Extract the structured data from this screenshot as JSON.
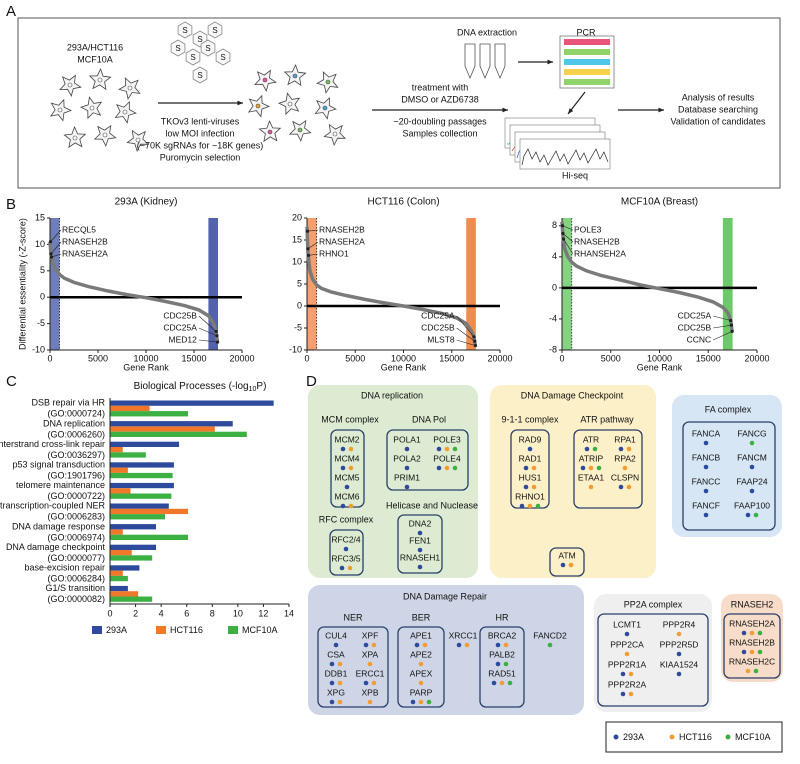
{
  "panel_labels": [
    "A",
    "B",
    "C",
    "D"
  ],
  "workflow": {
    "cell_lines": [
      "293A/HCT116",
      "MCF10A"
    ],
    "virus_label": "S",
    "infection": [
      "TKOv3 lenti-viruses",
      "low MOI infection",
      "(~70K sgRNAs for ~18K genes)",
      "Puromycin selection"
    ],
    "treatment": [
      "treatment with",
      "DMSO or AZD6738",
      "~20-doubling passages",
      "Samples collection"
    ],
    "extraction": "DNA extraction",
    "pcr": "PCR",
    "sequencing": "Hi-seq",
    "analysis": [
      "Analysis of results",
      "Database searching",
      "Validation of candidates"
    ]
  },
  "chart_data": [
    {
      "type": "line",
      "title": "293A (Kidney)",
      "ylabel": "Differential essentiality (-Z-score)",
      "xlabel": "Gene Rank",
      "color": "#3f51a3",
      "x": [
        0,
        100,
        300,
        600,
        1000,
        1500,
        2500,
        4000,
        6000,
        8000,
        10000,
        12000,
        14000,
        15500,
        16500,
        17000,
        17300,
        17450
      ],
      "values": [
        10.5,
        8,
        6.5,
        5.2,
        4.3,
        3.6,
        2.8,
        2,
        1.2,
        0.5,
        -0.1,
        -0.8,
        -1.6,
        -2.4,
        -3.5,
        -4.8,
        -6.5,
        -8.5
      ],
      "xlim": [
        0,
        20000
      ],
      "xticks": [
        0,
        5000,
        10000,
        15000,
        20000
      ],
      "ylim": [
        -10,
        15
      ],
      "yticks": [
        -10,
        -5,
        0,
        5,
        10,
        15
      ],
      "highlight": [
        [
          0,
          1000
        ],
        [
          16500,
          17500
        ]
      ],
      "annotations": [
        {
          "text": "RECQL5",
          "x": 50,
          "y": 10.5
        },
        {
          "text": "RNASEH2B",
          "x": 100,
          "y": 8.2
        },
        {
          "text": "RNASEH2A",
          "x": 150,
          "y": 7.6
        },
        {
          "text": "CDC25B",
          "x": 17300,
          "y": -6.5
        },
        {
          "text": "CDC25A",
          "x": 17380,
          "y": -7.3
        },
        {
          "text": "MED12",
          "x": 17450,
          "y": -8.5
        }
      ]
    },
    {
      "type": "line",
      "title": "HCT116 (Colon)",
      "xlabel": "Gene Rank",
      "color": "#f07f3c",
      "x": [
        0,
        100,
        300,
        600,
        1000,
        1500,
        2500,
        4000,
        6000,
        8000,
        10000,
        12000,
        14000,
        15500,
        16500,
        17000,
        17300,
        17450
      ],
      "values": [
        18,
        12,
        8,
        6,
        4.8,
        4,
        3.2,
        2.4,
        1.5,
        0.7,
        0,
        -0.8,
        -1.7,
        -2.7,
        -4,
        -5.5,
        -7,
        -9
      ],
      "xlim": [
        0,
        20000
      ],
      "xticks": [
        0,
        5000,
        10000,
        15000,
        20000
      ],
      "ylim": [
        -10,
        20
      ],
      "yticks": [
        -10,
        -5,
        0,
        5,
        10,
        15,
        20
      ],
      "highlight": [
        [
          0,
          1000
        ],
        [
          16500,
          17500
        ]
      ],
      "annotations": [
        {
          "text": "RNASEH2B",
          "x": 50,
          "y": 17
        },
        {
          "text": "RNASEH2A",
          "x": 100,
          "y": 13
        },
        {
          "text": "RHNO1",
          "x": 150,
          "y": 11.5
        },
        {
          "text": "CDC25A",
          "x": 17300,
          "y": -7
        },
        {
          "text": "CDC25B",
          "x": 17380,
          "y": -8
        },
        {
          "text": "MLST8",
          "x": 17450,
          "y": -9
        }
      ]
    },
    {
      "type": "line",
      "title": "MCF10A (Breast)",
      "xlabel": "Gene Rank",
      "color": "#5cc35a",
      "x": [
        0,
        100,
        300,
        600,
        1000,
        1500,
        2500,
        4000,
        6000,
        8000,
        10000,
        12000,
        14000,
        15500,
        16500,
        17000,
        17300,
        17450
      ],
      "values": [
        8.5,
        6.5,
        5,
        4,
        3.3,
        2.8,
        2.2,
        1.6,
        1,
        0.4,
        -0.1,
        -0.6,
        -1.2,
        -1.8,
        -2.5,
        -3.2,
        -4.2,
        -5.6
      ],
      "xlim": [
        0,
        20000
      ],
      "xticks": [
        0,
        5000,
        10000,
        15000,
        20000
      ],
      "ylim": [
        -8,
        9
      ],
      "yticks": [
        -8,
        -4,
        0,
        4,
        8
      ],
      "highlight": [
        [
          0,
          1000
        ],
        [
          16500,
          17500
        ]
      ],
      "annotations": [
        {
          "text": "POLE3",
          "x": 50,
          "y": 8
        },
        {
          "text": "RNASEH2B",
          "x": 100,
          "y": 7
        },
        {
          "text": "RHANSEH2A",
          "x": 150,
          "y": 6.3
        },
        {
          "text": "CDC25A",
          "x": 17300,
          "y": -4.2
        },
        {
          "text": "CDC25B",
          "x": 17380,
          "y": -4.8
        },
        {
          "text": "CCNC",
          "x": 17450,
          "y": -5.6
        }
      ]
    },
    {
      "type": "bar",
      "orientation": "horizontal",
      "title": [
        "Biological Processes (-log",
        "10",
        "P)"
      ],
      "categories": [
        {
          "name": "DSB repair via HR",
          "go": "(GO:0000724)"
        },
        {
          "name": "DNA replication",
          "go": "(GO:0006260)"
        },
        {
          "name": "interstrand cross-link repair",
          "go": "(GO:0036297)"
        },
        {
          "name": "p53 signal transduction",
          "go": "(GO:1901796)"
        },
        {
          "name": "telomere maintenance",
          "go": "(GO:0000722)"
        },
        {
          "name": "transcription-coupled NER",
          "go": "(GO:0006283)"
        },
        {
          "name": "DNA damage response",
          "go": "(GO:0006974)"
        },
        {
          "name": "DNA damage checkpoint",
          "go": "(GO:0000077)"
        },
        {
          "name": "base-excision repair",
          "go": "(GO:0006284)"
        },
        {
          "name": "G1/S transition",
          "go": "(GO:0000082)"
        }
      ],
      "series": [
        {
          "name": "293A",
          "color": "#2e4a9c",
          "values": [
            12.8,
            9.6,
            5.4,
            5.0,
            5.0,
            4.6,
            3.6,
            3.6,
            2.3,
            1.4
          ]
        },
        {
          "name": "HCT116",
          "color": "#f0782a",
          "values": [
            3.1,
            8.2,
            1.0,
            1.4,
            1.6,
            6.1,
            1.0,
            1.7,
            1.0,
            2.2
          ]
        },
        {
          "name": "MCF10A",
          "color": "#3cb043",
          "values": [
            6.1,
            10.7,
            2.8,
            4.9,
            4.8,
            4.3,
            6.1,
            3.3,
            1.4,
            3.3
          ]
        }
      ],
      "xlim": [
        0,
        14
      ],
      "xticks": [
        0,
        2,
        4,
        6,
        8,
        10,
        12,
        14
      ]
    }
  ],
  "pathways": {
    "legend": [
      {
        "name": "293A",
        "color": "#2e4a9c"
      },
      {
        "name": "HCT116",
        "color": "#f39c34"
      },
      {
        "name": "MCF10A",
        "color": "#3cb043"
      }
    ],
    "groups": [
      {
        "title": "DNA replication",
        "color": "#dcebd2",
        "subgroups": [
          {
            "title": "MCM complex",
            "genes": [
              {
                "label": "MCM2",
                "hits": [
                  0,
                  1
                ]
              },
              {
                "label": "MCM4",
                "hits": [
                  0,
                  1
                ]
              },
              {
                "label": "MCM5",
                "hits": [
                  0
                ]
              },
              {
                "label": "MCM6",
                "hits": [
                  0,
                  1
                ]
              }
            ]
          },
          {
            "title": "DNA Pol",
            "genes": [
              {
                "label": "POLA1",
                "hits": [
                  0
                ]
              },
              {
                "label": "POLE3",
                "hits": [
                  0,
                  1,
                  2
                ]
              },
              {
                "label": "POLA2",
                "hits": [
                  0
                ]
              },
              {
                "label": "POLE4",
                "hits": [
                  0,
                  1,
                  2
                ]
              },
              {
                "label": "PRIM1",
                "hits": [
                  0
                ]
              }
            ]
          },
          {
            "title": "RFC complex",
            "genes": [
              {
                "label": "RFC2/4",
                "hits": [
                  0
                ]
              },
              {
                "label": "RFC3/5",
                "hits": [
                  0,
                  1
                ]
              }
            ]
          },
          {
            "title": "Helicase and Nuclease",
            "genes": [
              {
                "label": "DNA2",
                "hits": [
                  0
                ]
              },
              {
                "label": "FEN1",
                "hits": [
                  0
                ]
              },
              {
                "label": "RNASEH1",
                "hits": [
                  0
                ]
              }
            ]
          }
        ]
      },
      {
        "title": "DNA Damage Checkpoint",
        "color": "#fcf0c8",
        "subgroups": [
          {
            "title": "9-1-1 complex",
            "genes": [
              {
                "label": "RAD9",
                "hits": [
                  0
                ]
              },
              {
                "label": "RAD1",
                "hits": [
                  0,
                  1
                ]
              },
              {
                "label": "HUS1",
                "hits": [
                  0,
                  1
                ]
              },
              {
                "label": "RHNO1",
                "hits": [
                  0,
                  1,
                  2
                ]
              }
            ]
          },
          {
            "title": "ATR pathway",
            "genes": [
              {
                "label": "ATR",
                "hits": [
                  0,
                  2
                ]
              },
              {
                "label": "RPA1",
                "hits": [
                  0,
                  1
                ]
              },
              {
                "label": "ATRIP",
                "hits": [
                  0,
                  1,
                  2
                ]
              },
              {
                "label": "RPA2",
                "hits": [
                  1
                ]
              },
              {
                "label": "ETAA1",
                "hits": [
                  1
                ]
              },
              {
                "label": "CLSPN",
                "hits": [
                  0,
                  1
                ]
              }
            ]
          },
          {
            "genes": [
              {
                "label": "ATM",
                "hits": [
                  0,
                  1
                ]
              }
            ]
          }
        ]
      },
      {
        "title": "FA complex",
        "color": "#d6e6f5",
        "subgroups": [
          {
            "genes": [
              {
                "label": "FANCA",
                "hits": [
                  0
                ]
              },
              {
                "label": "FANCG",
                "hits": [
                  2
                ]
              },
              {
                "label": "FANCB",
                "hits": [
                  0
                ]
              },
              {
                "label": "FANCM",
                "hits": [
                  0
                ]
              },
              {
                "label": "FANCC",
                "hits": [
                  0
                ]
              },
              {
                "label": "FAAP24",
                "hits": [
                  0
                ]
              },
              {
                "label": "FANCF",
                "hits": [
                  0
                ]
              },
              {
                "label": "FAAP100",
                "hits": [
                  0,
                  2
                ]
              }
            ]
          }
        ]
      },
      {
        "title": "DNA Damage Repair",
        "color": "#cdd5e6",
        "subgroups": [
          {
            "title": "NER",
            "genes": [
              {
                "label": "CUL4",
                "hits": [
                  0
                ]
              },
              {
                "label": "XPF",
                "hits": [
                  0,
                  1
                ]
              },
              {
                "label": "CSA",
                "hits": [
                  0,
                  1
                ]
              },
              {
                "label": "XPA",
                "hits": [
                  1
                ]
              },
              {
                "label": "DDB1",
                "hits": [
                  0,
                  1
                ]
              },
              {
                "label": "ERCC1",
                "hits": [
                  0,
                  1
                ]
              },
              {
                "label": "XPG",
                "hits": [
                  0,
                  1
                ]
              },
              {
                "label": "XPB",
                "hits": [
                  1
                ]
              }
            ]
          },
          {
            "title": "BER",
            "genes": [
              {
                "label": "APE1",
                "hits": [
                  0,
                  1
                ]
              },
              {
                "label": "XRCC1",
                "hits": [
                  0,
                  1
                ]
              },
              {
                "label": "APE2",
                "hits": [
                  1
                ]
              },
              {
                "label": "APEX",
                "hits": [
                  1
                ]
              },
              {
                "label": "PARP",
                "hits": [
                  0,
                  1,
                  2
                ]
              }
            ]
          },
          {
            "title": "HR",
            "genes": [
              {
                "label": "BRCA2",
                "hits": [
                  0,
                  1
                ]
              },
              {
                "label": "FANCD2",
                "hits": [
                  2
                ]
              },
              {
                "label": "PALB2",
                "hits": [
                  0,
                  2
                ]
              },
              {
                "label": "RAD51",
                "hits": [
                  0,
                  1,
                  2
                ]
              }
            ]
          }
        ]
      },
      {
        "title": "PP2A complex",
        "color": "#efefef",
        "subgroups": [
          {
            "genes": [
              {
                "label": "LCMT1",
                "hits": [
                  0
                ]
              },
              {
                "label": "PPP2R4",
                "hits": [
                  1
                ]
              },
              {
                "label": "PPP2CA",
                "hits": [
                  1
                ]
              },
              {
                "label": "PPP2R5D",
                "hits": [
                  0
                ]
              },
              {
                "label": "PPP2R1A",
                "hits": [
                  0,
                  1
                ]
              },
              {
                "label": "KIAA1524",
                "hits": [
                  0
                ]
              },
              {
                "label": "PPP2R2A",
                "hits": [
                  0,
                  1
                ]
              }
            ]
          }
        ]
      },
      {
        "title": "RNASEH2",
        "color": "#f7ddc9",
        "subgroups": [
          {
            "genes": [
              {
                "label": "RNASEH2A",
                "hits": [
                  0,
                  1,
                  2
                ]
              },
              {
                "label": "RNASEH2B",
                "hits": [
                  0,
                  1,
                  2
                ]
              },
              {
                "label": "RNASEH2C",
                "hits": [
                  1,
                  2
                ]
              }
            ]
          }
        ]
      }
    ]
  }
}
